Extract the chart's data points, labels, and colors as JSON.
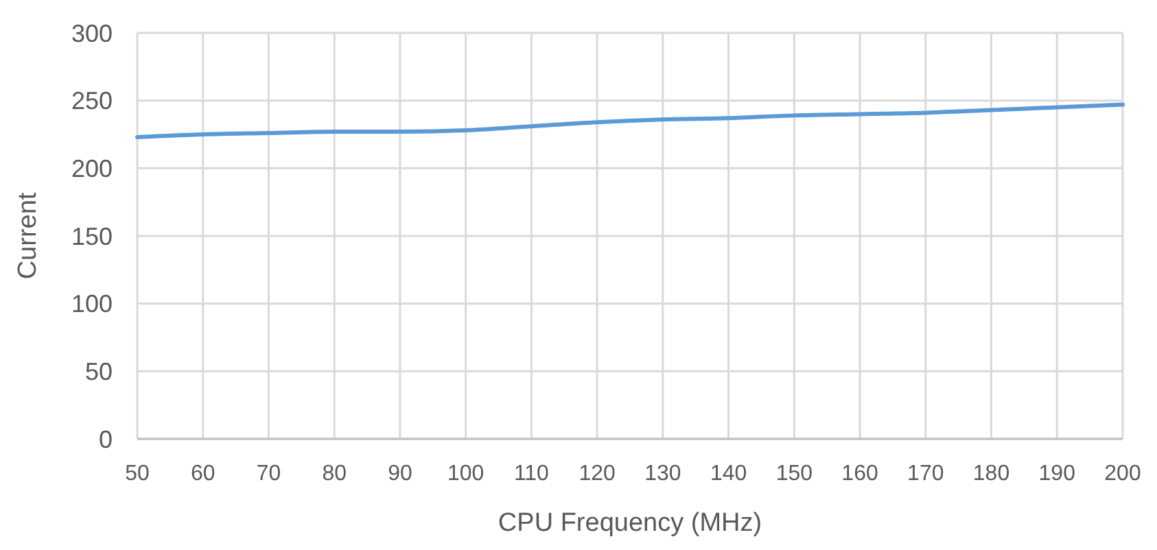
{
  "chart_data": {
    "type": "line",
    "xlabel": "CPU Frequency (MHz)",
    "ylabel": "Current",
    "categories": [
      "50",
      "60",
      "70",
      "80",
      "90",
      "100",
      "110",
      "120",
      "130",
      "140",
      "150",
      "160",
      "170",
      "180",
      "190",
      "200"
    ],
    "series": [
      {
        "color": "#5b9bd5",
        "values": [
          223,
          225,
          226,
          227,
          227,
          228,
          231,
          234,
          236,
          237,
          239,
          240,
          241,
          243,
          245,
          247
        ]
      }
    ],
    "ylim": [
      0,
      300
    ],
    "yticks": [
      0,
      50,
      100,
      150,
      200,
      250,
      300
    ],
    "grid": true,
    "marker": "none",
    "line_style": "solid"
  }
}
